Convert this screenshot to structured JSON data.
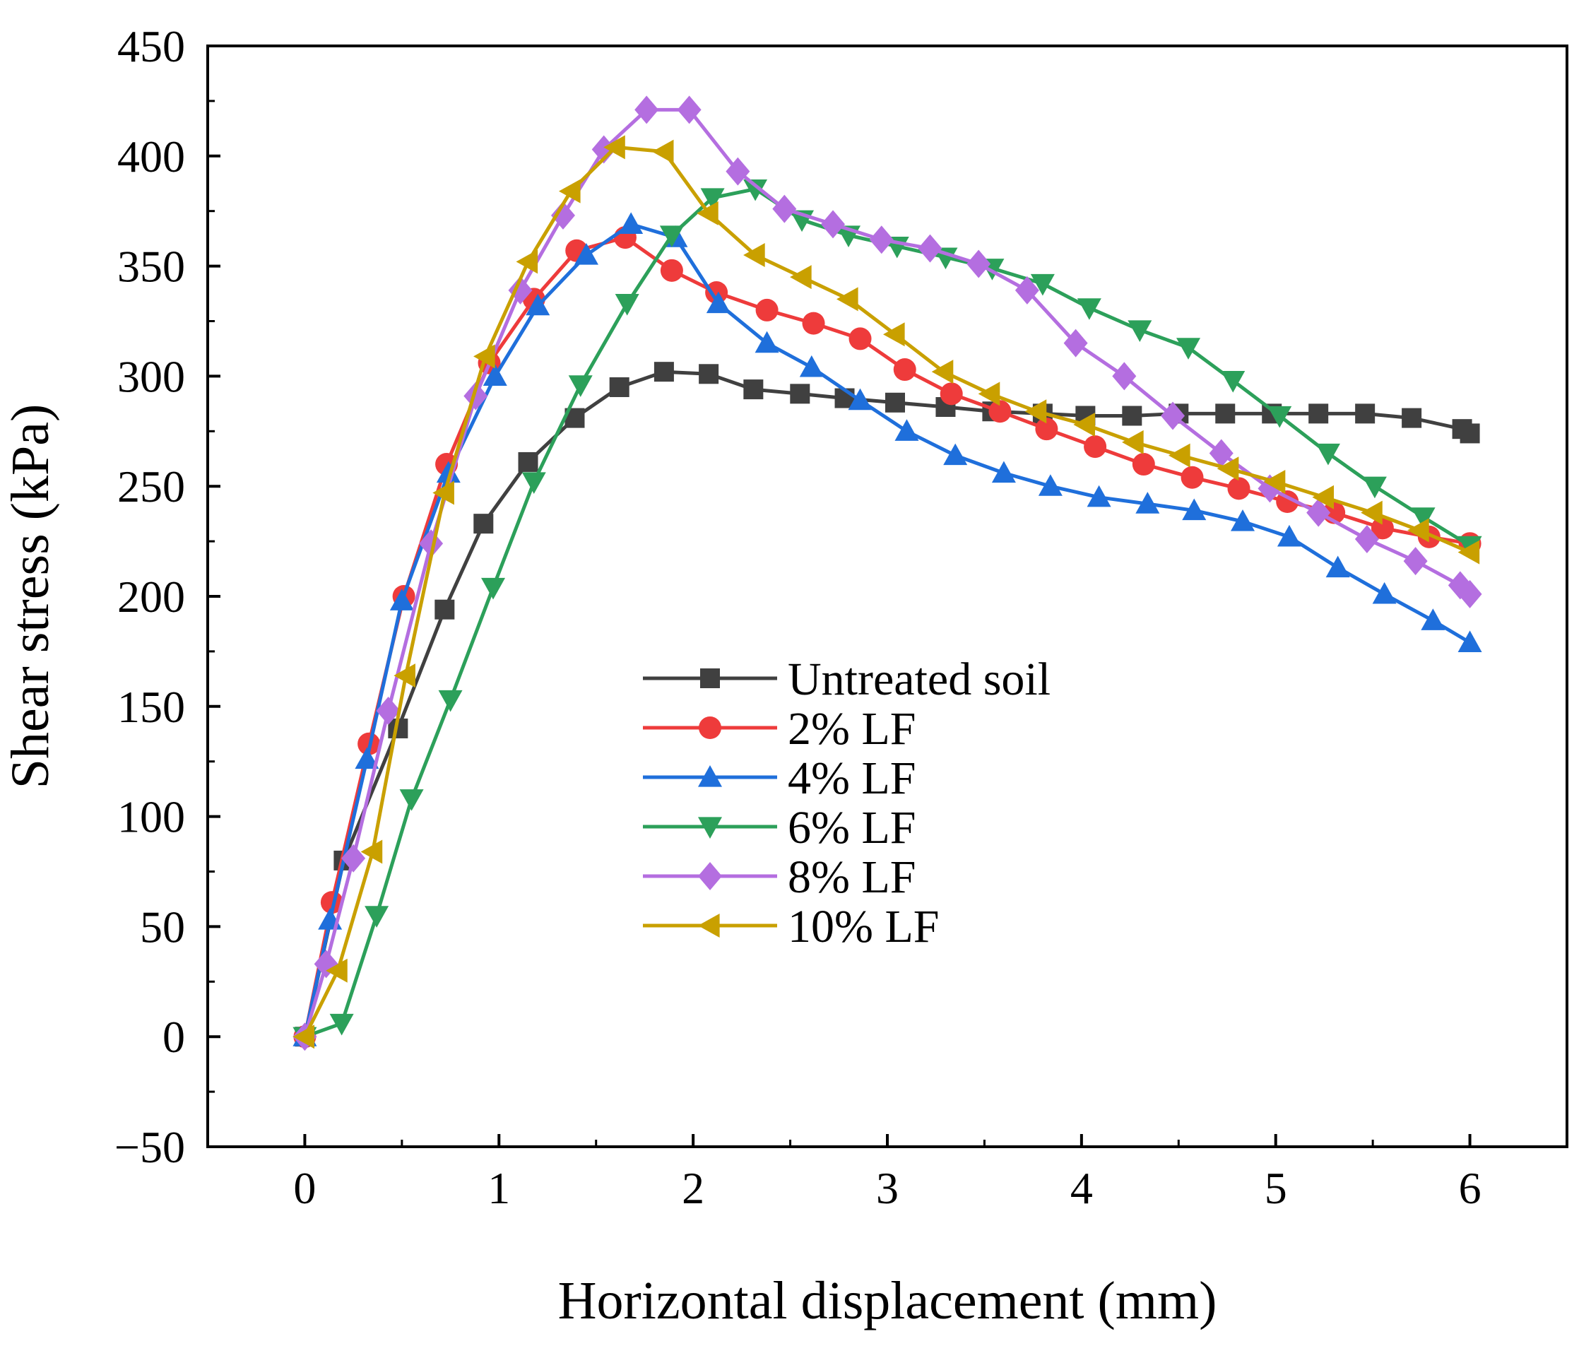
{
  "chart_data": {
    "type": "line",
    "title": "",
    "xlabel": "Horizontal displacement (mm)",
    "ylabel": "Shear stress (kPa)",
    "xlim": [
      -0.5,
      6.5
    ],
    "ylim": [
      -50,
      450
    ],
    "xticks": [
      0,
      1,
      2,
      3,
      4,
      5,
      6
    ],
    "yticks": [
      -50,
      0,
      50,
      100,
      150,
      200,
      250,
      300,
      350,
      400,
      450
    ],
    "xtick_labels": [
      "0",
      "1",
      "2",
      "3",
      "4",
      "5",
      "6"
    ],
    "ytick_labels": [
      "−50",
      "0",
      "50",
      "100",
      "150",
      "200",
      "250",
      "300",
      "350",
      "400",
      "450"
    ],
    "grid": false,
    "legend_position": "center-left",
    "series": [
      {
        "name": "Untreated soil",
        "color": "#404040",
        "marker": "square",
        "x": [
          0,
          0.2,
          0.48,
          0.72,
          0.92,
          1.15,
          1.39,
          1.62,
          1.85,
          2.08,
          2.31,
          2.55,
          2.78,
          3.04,
          3.3,
          3.54,
          3.8,
          4.02,
          4.26,
          4.5,
          4.74,
          4.98,
          5.22,
          5.46,
          5.7,
          5.96,
          6.0
        ],
        "y": [
          0,
          80,
          140,
          194,
          233,
          261,
          281,
          295,
          302,
          301,
          294,
          292,
          290,
          288,
          286,
          284,
          283,
          282,
          282,
          283,
          283,
          283,
          283,
          283,
          281,
          276,
          274
        ]
      },
      {
        "name": "2% LF",
        "color": "#ee3b3b",
        "marker": "circle",
        "x": [
          0,
          0.14,
          0.33,
          0.51,
          0.73,
          0.95,
          1.18,
          1.4,
          1.65,
          1.89,
          2.12,
          2.38,
          2.62,
          2.86,
          3.09,
          3.33,
          3.58,
          3.82,
          4.07,
          4.32,
          4.57,
          4.81,
          5.06,
          5.3,
          5.55,
          5.79,
          6.0
        ],
        "y": [
          0,
          61,
          133,
          200,
          260,
          306,
          335,
          357,
          363,
          348,
          338,
          330,
          324,
          317,
          303,
          292,
          284,
          276,
          268,
          260,
          254,
          249,
          243,
          238,
          231,
          227,
          224
        ]
      },
      {
        "name": "4% LF",
        "color": "#1f6fdb",
        "marker": "triangle-up",
        "x": [
          0,
          0.13,
          0.32,
          0.5,
          0.74,
          0.98,
          1.2,
          1.45,
          1.68,
          1.91,
          2.13,
          2.38,
          2.61,
          2.86,
          3.1,
          3.35,
          3.6,
          3.84,
          4.09,
          4.34,
          4.58,
          4.83,
          5.07,
          5.32,
          5.56,
          5.81,
          6.0
        ],
        "y": [
          0,
          53,
          126,
          198,
          256,
          300,
          332,
          355,
          369,
          363,
          333,
          315,
          304,
          289,
          275,
          264,
          256,
          250,
          245,
          242,
          239,
          234,
          227,
          213,
          201,
          189,
          179
        ]
      },
      {
        "name": "6% LF",
        "color": "#2ca05a",
        "marker": "triangle-down",
        "x": [
          0,
          0.19,
          0.37,
          0.55,
          0.75,
          0.97,
          1.18,
          1.42,
          1.66,
          1.89,
          2.1,
          2.32,
          2.56,
          2.8,
          3.05,
          3.3,
          3.54,
          3.8,
          4.04,
          4.3,
          4.55,
          4.78,
          5.02,
          5.27,
          5.51,
          5.76,
          6.0
        ],
        "y": [
          0,
          6,
          55,
          108,
          153,
          204,
          252,
          296,
          333,
          364,
          381,
          385,
          371,
          364,
          359,
          354,
          349,
          342,
          331,
          321,
          313,
          298,
          282,
          265,
          250,
          236,
          223
        ]
      },
      {
        "name": "8% LF",
        "color": "#b46ee0",
        "marker": "diamond",
        "x": [
          0,
          0.11,
          0.25,
          0.43,
          0.65,
          0.88,
          1.11,
          1.33,
          1.54,
          1.76,
          1.98,
          2.23,
          2.47,
          2.72,
          2.97,
          3.22,
          3.47,
          3.72,
          3.97,
          4.22,
          4.47,
          4.72,
          4.97,
          5.22,
          5.47,
          5.72,
          5.95,
          6.0
        ],
        "y": [
          0,
          33,
          81,
          148,
          224,
          291,
          339,
          373,
          403,
          421,
          421,
          393,
          376,
          369,
          362,
          358,
          351,
          339,
          315,
          300,
          282,
          265,
          249,
          238,
          226,
          216,
          205,
          201
        ]
      },
      {
        "name": "10% LF",
        "color": "#c9a000",
        "marker": "triangle-left",
        "x": [
          0,
          0.17,
          0.35,
          0.52,
          0.72,
          0.93,
          1.15,
          1.37,
          1.6,
          1.85,
          2.08,
          2.32,
          2.56,
          2.8,
          3.04,
          3.29,
          3.53,
          3.77,
          4.02,
          4.27,
          4.51,
          4.76,
          5.0,
          5.25,
          5.5,
          5.74,
          6.0
        ],
        "y": [
          0,
          30,
          84,
          164,
          247,
          309,
          352,
          384,
          404,
          402,
          374,
          355,
          345,
          335,
          319,
          302,
          292,
          284,
          278,
          270,
          264,
          258,
          252,
          245,
          238,
          230,
          220
        ]
      }
    ]
  }
}
